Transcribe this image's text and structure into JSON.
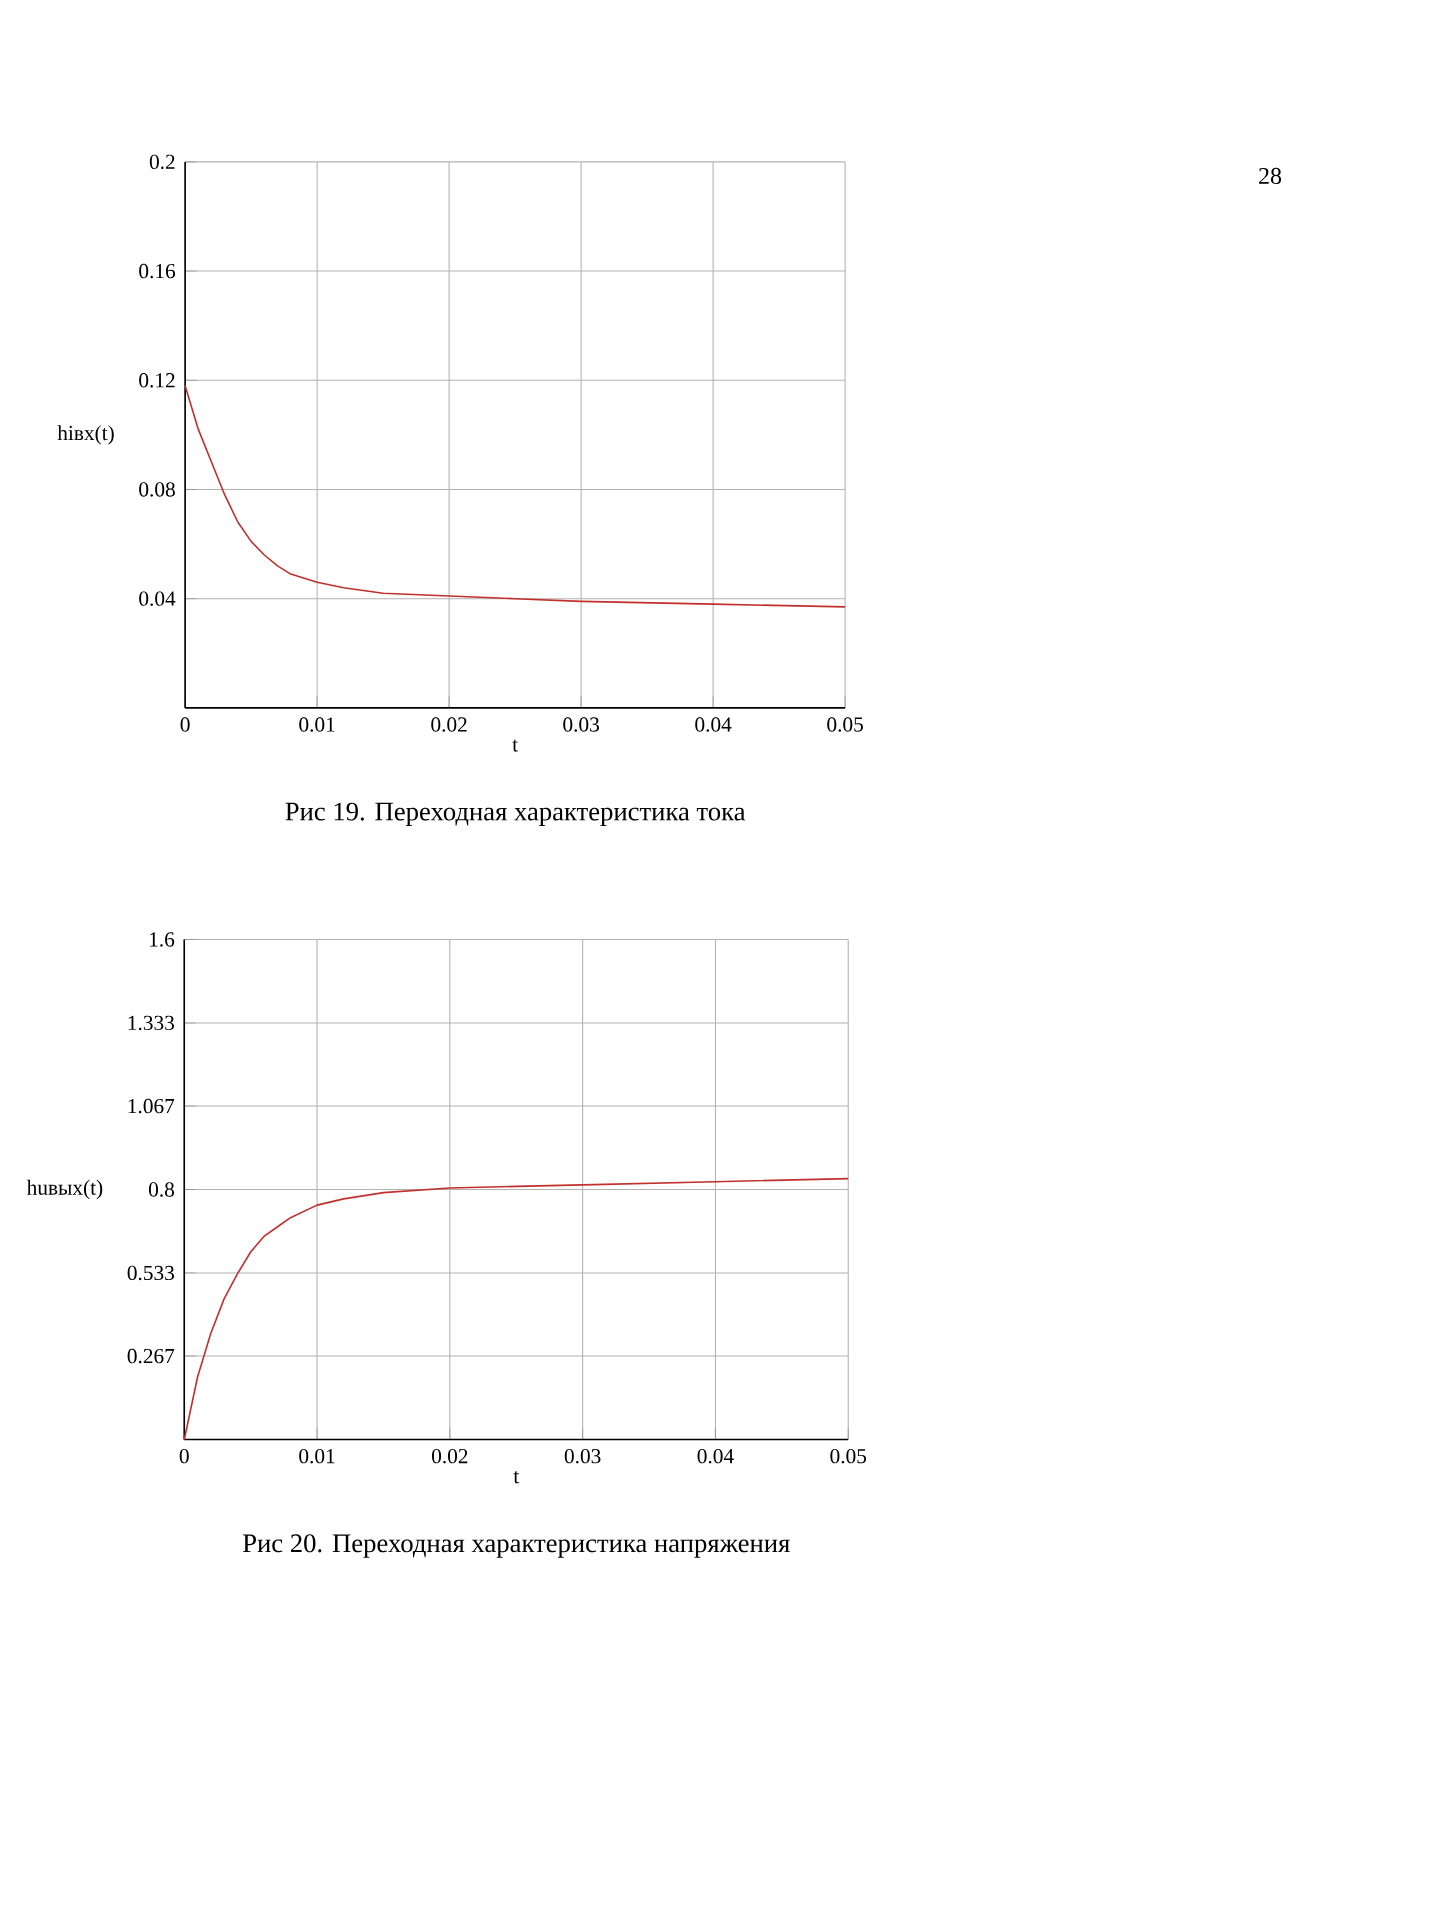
{
  "chart_data": [
    {
      "type": "line",
      "title": "Рис  19. Переходная характеристика тока",
      "xlabel": "t",
      "ylabel": "hiвх(t)",
      "annotations": [
        "28"
      ],
      "grid": true,
      "xlim": [
        0,
        0.05
      ],
      "ylim": [
        0,
        0.2
      ],
      "xticks": [
        0,
        0.01,
        0.02,
        0.03,
        0.04,
        0.05
      ],
      "yticks": [
        0.04,
        0.08,
        0.12,
        0.16,
        0.2
      ],
      "series": [
        {
          "color": "#c0302c",
          "x": [
            0,
            0.001,
            0.002,
            0.003,
            0.004,
            0.005,
            0.006,
            0.007,
            0.008,
            0.01,
            0.012,
            0.015,
            0.02,
            0.025,
            0.03,
            0.04,
            0.05
          ],
          "values": [
            0.118,
            0.102,
            0.09,
            0.078,
            0.068,
            0.061,
            0.056,
            0.052,
            0.049,
            0.046,
            0.044,
            0.042,
            0.041,
            0.04,
            0.039,
            0.038,
            0.037
          ]
        }
      ]
    },
    {
      "type": "line",
      "title": "Рис  20. Переходная характеристика напряжения",
      "xlabel": "t",
      "ylabel": "huвых(t)",
      "grid": true,
      "xlim": [
        0,
        0.05
      ],
      "ylim": [
        0,
        1.6
      ],
      "xticks": [
        0,
        0.01,
        0.02,
        0.03,
        0.04,
        0.05
      ],
      "yticks": [
        0.267,
        0.533,
        0.8,
        1.067,
        1.333,
        1.6
      ],
      "series": [
        {
          "color": "#c0302c",
          "x": [
            0,
            0.001,
            0.002,
            0.003,
            0.004,
            0.005,
            0.006,
            0.007,
            0.008,
            0.01,
            0.012,
            0.015,
            0.02,
            0.025,
            0.03,
            0.04,
            0.05
          ],
          "values": [
            0,
            0.2,
            0.34,
            0.45,
            0.53,
            0.6,
            0.65,
            0.68,
            0.71,
            0.75,
            0.77,
            0.79,
            0.805,
            0.81,
            0.815,
            0.825,
            0.835
          ]
        }
      ]
    }
  ]
}
